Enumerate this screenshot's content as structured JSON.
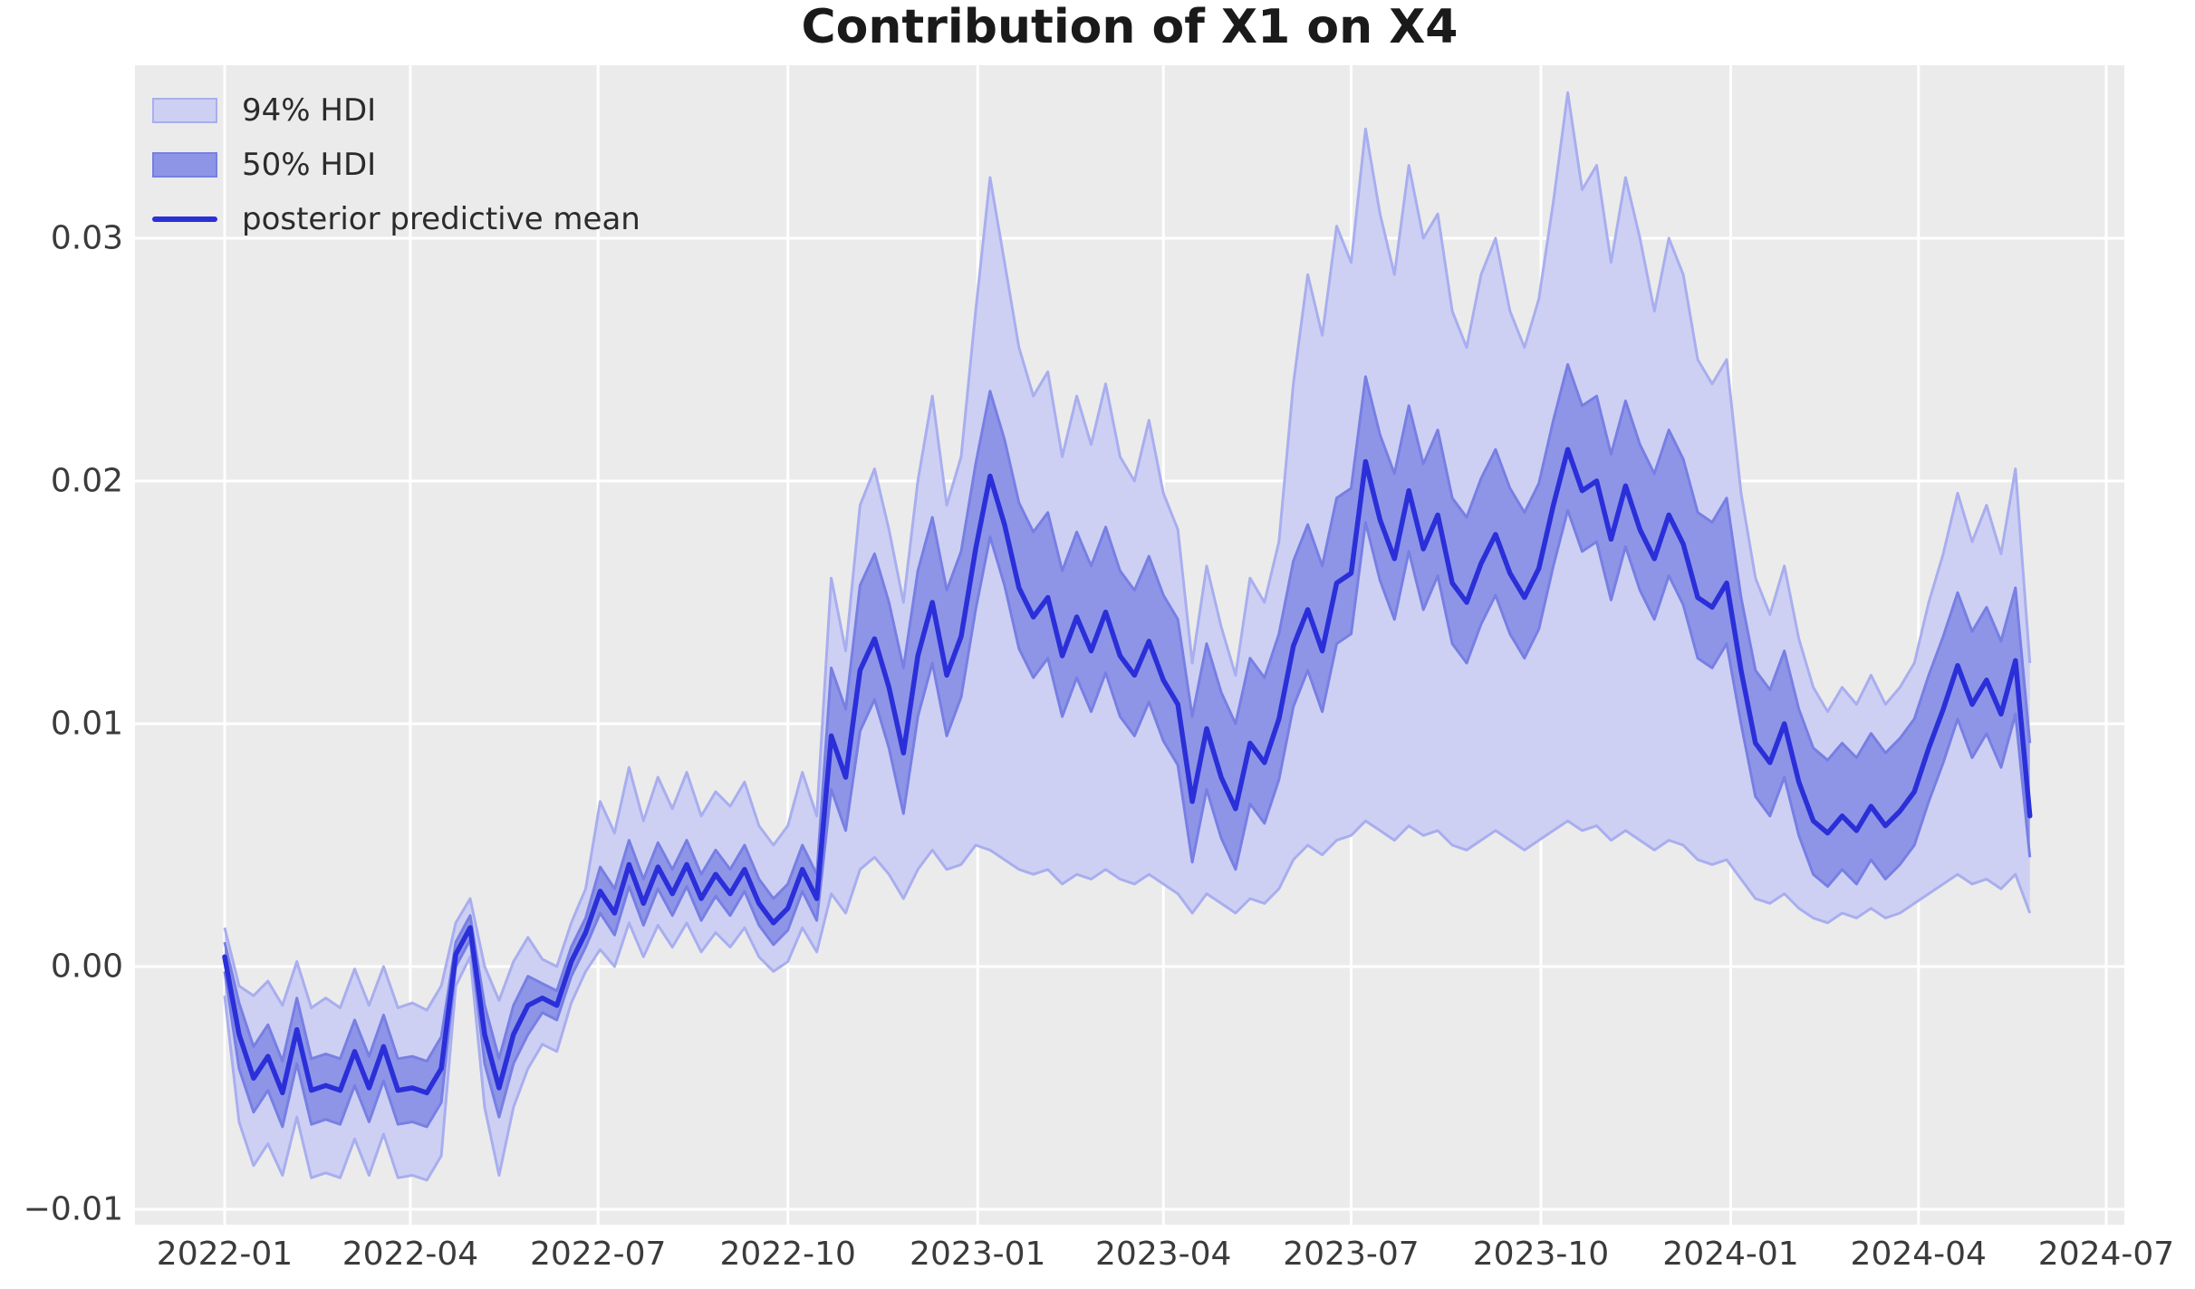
{
  "title": "Contribution of X1 on X4",
  "colors": {
    "figure_bg": "#ffffff",
    "axes_bg": "#ebebeb",
    "grid": "#ffffff",
    "hdi94_fill": "#cdd0f3",
    "hdi94_edge": "#a8aeee",
    "hdi50_fill": "#8e95e7",
    "hdi50_edge": "#777fe3",
    "mean_line": "#2b2fd8"
  },
  "legend": {
    "items": [
      {
        "label": "94% HDI",
        "type": "patch",
        "fill": "#cdd0f3",
        "edge": "#a8aeee"
      },
      {
        "label": "50% HDI",
        "type": "patch",
        "fill": "#8e95e7",
        "edge": "#777fe3"
      },
      {
        "label": "posterior predictive mean",
        "type": "line",
        "color": "#2b2fd8"
      }
    ]
  },
  "axes": {
    "y_ticks": [
      {
        "label": "0.03",
        "value": 0.03
      },
      {
        "label": "0.02",
        "value": 0.02
      },
      {
        "label": "0.01",
        "value": 0.01
      },
      {
        "label": "0.00",
        "value": 0.0
      },
      {
        "label": "−0.01",
        "value": -0.01
      }
    ],
    "x_ticks": [
      {
        "label": "2022-01",
        "day": 0
      },
      {
        "label": "2022-04",
        "day": 90
      },
      {
        "label": "2022-07",
        "day": 181
      },
      {
        "label": "2022-10",
        "day": 273
      },
      {
        "label": "2023-01",
        "day": 365
      },
      {
        "label": "2023-04",
        "day": 455
      },
      {
        "label": "2023-07",
        "day": 546
      },
      {
        "label": "2023-10",
        "day": 638
      },
      {
        "label": "2024-01",
        "day": 730
      },
      {
        "label": "2024-04",
        "day": 821
      },
      {
        "label": "2024-07",
        "day": 912
      }
    ]
  },
  "chart_data": {
    "type": "line",
    "title": "Contribution of X1 on X4",
    "xlabel": "",
    "ylabel": "",
    "grid": true,
    "legend_position": "upper left",
    "x_start_date": "2022-01-01",
    "x_step_days": 7,
    "n_points": 126,
    "ylim": [
      -0.0106,
      0.0371
    ],
    "series": {
      "mean": [
        0.0004,
        -0.0028,
        -0.0046,
        -0.0037,
        -0.0052,
        -0.0026,
        -0.0051,
        -0.0049,
        -0.0051,
        -0.0035,
        -0.005,
        -0.0033,
        -0.0051,
        -0.005,
        -0.0052,
        -0.0042,
        0.0005,
        0.0016,
        -0.0028,
        -0.005,
        -0.0028,
        -0.0016,
        -0.0013,
        -0.0016,
        0.0002,
        0.0014,
        0.0031,
        0.0022,
        0.0042,
        0.0026,
        0.0041,
        0.003,
        0.0042,
        0.0028,
        0.0038,
        0.003,
        0.004,
        0.0026,
        0.0018,
        0.0024,
        0.004,
        0.0028,
        0.0095,
        0.0078,
        0.0122,
        0.0135,
        0.0115,
        0.0088,
        0.0128,
        0.015,
        0.012,
        0.0136,
        0.0172,
        0.0202,
        0.0182,
        0.0156,
        0.0144,
        0.0152,
        0.0128,
        0.0144,
        0.013,
        0.0146,
        0.0128,
        0.012,
        0.0134,
        0.0118,
        0.0108,
        0.0068,
        0.0098,
        0.0078,
        0.0065,
        0.0092,
        0.0084,
        0.0102,
        0.0132,
        0.0147,
        0.013,
        0.0158,
        0.0162,
        0.0208,
        0.0184,
        0.0168,
        0.0196,
        0.0172,
        0.0186,
        0.0158,
        0.015,
        0.0166,
        0.0178,
        0.0162,
        0.0152,
        0.0164,
        0.019,
        0.0213,
        0.0196,
        0.02,
        0.0176,
        0.0198,
        0.018,
        0.0168,
        0.0186,
        0.0174,
        0.0152,
        0.0148,
        0.0158,
        0.0122,
        0.0092,
        0.0084,
        0.01,
        0.0076,
        0.006,
        0.0055,
        0.0062,
        0.0056,
        0.0066,
        0.0058,
        0.0064,
        0.0072,
        0.009,
        0.0106,
        0.0124,
        0.0108,
        0.0118,
        0.0104,
        0.0126,
        0.0062
      ],
      "hdi50_lower": [
        -0.0002,
        -0.0042,
        -0.006,
        -0.0051,
        -0.0066,
        -0.004,
        -0.0065,
        -0.0063,
        -0.0065,
        -0.0049,
        -0.0064,
        -0.0047,
        -0.0065,
        -0.0064,
        -0.0066,
        -0.0056,
        0.0,
        0.0011,
        -0.004,
        -0.0062,
        -0.004,
        -0.0028,
        -0.0019,
        -0.0022,
        -0.0004,
        0.0008,
        0.0022,
        0.0013,
        0.0033,
        0.0017,
        0.0032,
        0.0021,
        0.0033,
        0.0019,
        0.0029,
        0.0021,
        0.0031,
        0.0017,
        0.0009,
        0.0015,
        0.0031,
        0.0019,
        0.0073,
        0.0056,
        0.0097,
        0.011,
        0.009,
        0.0063,
        0.0103,
        0.0125,
        0.0095,
        0.0111,
        0.0147,
        0.0177,
        0.0157,
        0.0131,
        0.0119,
        0.0127,
        0.0103,
        0.0119,
        0.0105,
        0.0121,
        0.0103,
        0.0095,
        0.0109,
        0.0093,
        0.0083,
        0.0043,
        0.0073,
        0.0053,
        0.004,
        0.0067,
        0.0059,
        0.0077,
        0.0107,
        0.0122,
        0.0105,
        0.0133,
        0.0137,
        0.0183,
        0.0159,
        0.0143,
        0.0171,
        0.0147,
        0.0161,
        0.0133,
        0.0125,
        0.0141,
        0.0153,
        0.0137,
        0.0127,
        0.0139,
        0.0165,
        0.0188,
        0.0171,
        0.0175,
        0.0151,
        0.0173,
        0.0155,
        0.0143,
        0.0161,
        0.0149,
        0.0127,
        0.0123,
        0.0133,
        0.01,
        0.007,
        0.0062,
        0.0078,
        0.0054,
        0.0038,
        0.0033,
        0.004,
        0.0034,
        0.0044,
        0.0036,
        0.0042,
        0.005,
        0.0068,
        0.0084,
        0.0102,
        0.0086,
        0.0096,
        0.0082,
        0.0104,
        0.0045
      ],
      "hdi50_upper": [
        0.001,
        -0.0015,
        -0.0033,
        -0.0024,
        -0.0039,
        -0.0013,
        -0.0038,
        -0.0036,
        -0.0038,
        -0.0022,
        -0.0037,
        -0.002,
        -0.0038,
        -0.0037,
        -0.0039,
        -0.0029,
        0.001,
        0.0021,
        -0.0016,
        -0.0038,
        -0.0016,
        -0.0004,
        -0.0007,
        -0.001,
        0.0008,
        0.002,
        0.0041,
        0.0032,
        0.0052,
        0.0036,
        0.0051,
        0.004,
        0.0052,
        0.0038,
        0.0048,
        0.004,
        0.005,
        0.0036,
        0.0028,
        0.0034,
        0.005,
        0.0038,
        0.0123,
        0.0106,
        0.0157,
        0.017,
        0.015,
        0.0123,
        0.0163,
        0.0185,
        0.0155,
        0.0171,
        0.0207,
        0.0237,
        0.0217,
        0.0191,
        0.0179,
        0.0187,
        0.0163,
        0.0179,
        0.0165,
        0.0181,
        0.0163,
        0.0155,
        0.0169,
        0.0153,
        0.0143,
        0.0103,
        0.0133,
        0.0113,
        0.01,
        0.0127,
        0.0119,
        0.0137,
        0.0167,
        0.0182,
        0.0165,
        0.0193,
        0.0197,
        0.0243,
        0.0219,
        0.0203,
        0.0231,
        0.0207,
        0.0221,
        0.0193,
        0.0185,
        0.0201,
        0.0213,
        0.0197,
        0.0187,
        0.0199,
        0.0225,
        0.0248,
        0.0231,
        0.0235,
        0.0211,
        0.0233,
        0.0215,
        0.0203,
        0.0221,
        0.0209,
        0.0187,
        0.0183,
        0.0193,
        0.0152,
        0.0122,
        0.0114,
        0.013,
        0.0106,
        0.009,
        0.0085,
        0.0092,
        0.0086,
        0.0096,
        0.0088,
        0.0094,
        0.0102,
        0.012,
        0.0136,
        0.0154,
        0.0138,
        0.0148,
        0.0134,
        0.0156,
        0.0092
      ],
      "hdi94_lower": [
        -0.0012,
        -0.0064,
        -0.0082,
        -0.0073,
        -0.0086,
        -0.0062,
        -0.0087,
        -0.0085,
        -0.0087,
        -0.0071,
        -0.0086,
        -0.0069,
        -0.0087,
        -0.0086,
        -0.0088,
        -0.0078,
        -0.0008,
        0.0004,
        -0.0058,
        -0.0086,
        -0.0058,
        -0.0042,
        -0.0032,
        -0.0035,
        -0.0015,
        -0.0002,
        0.0007,
        0.0,
        0.0018,
        0.0004,
        0.0017,
        0.0008,
        0.0018,
        0.0006,
        0.0014,
        0.0008,
        0.0016,
        0.0004,
        -0.0002,
        0.0002,
        0.0016,
        0.0006,
        0.003,
        0.0022,
        0.004,
        0.0045,
        0.0038,
        0.0028,
        0.004,
        0.0048,
        0.004,
        0.0042,
        0.005,
        0.0048,
        0.0044,
        0.004,
        0.0038,
        0.004,
        0.0034,
        0.0038,
        0.0036,
        0.004,
        0.0036,
        0.0034,
        0.0038,
        0.0034,
        0.003,
        0.0022,
        0.003,
        0.0026,
        0.0022,
        0.0028,
        0.0026,
        0.0032,
        0.0044,
        0.005,
        0.0046,
        0.0052,
        0.0054,
        0.006,
        0.0056,
        0.0052,
        0.0058,
        0.0054,
        0.0056,
        0.005,
        0.0048,
        0.0052,
        0.0056,
        0.0052,
        0.0048,
        0.0052,
        0.0056,
        0.006,
        0.0056,
        0.0058,
        0.0052,
        0.0056,
        0.0052,
        0.0048,
        0.0052,
        0.005,
        0.0044,
        0.0042,
        0.0044,
        0.0036,
        0.0028,
        0.0026,
        0.003,
        0.0024,
        0.002,
        0.0018,
        0.0022,
        0.002,
        0.0024,
        0.002,
        0.0022,
        0.0026,
        0.003,
        0.0034,
        0.0038,
        0.0034,
        0.0036,
        0.0032,
        0.0038,
        0.0022
      ],
      "hdi94_upper": [
        0.0016,
        -0.0008,
        -0.0012,
        -0.0006,
        -0.0016,
        0.0002,
        -0.0017,
        -0.0013,
        -0.0017,
        -0.0001,
        -0.0016,
        0.0,
        -0.0017,
        -0.0015,
        -0.0018,
        -0.0008,
        0.0018,
        0.0028,
        0.0,
        -0.0014,
        0.0002,
        0.0012,
        0.0003,
        0.0,
        0.0018,
        0.0032,
        0.0068,
        0.0055,
        0.0082,
        0.006,
        0.0078,
        0.0065,
        0.008,
        0.0062,
        0.0072,
        0.0066,
        0.0076,
        0.0058,
        0.005,
        0.0058,
        0.008,
        0.0062,
        0.016,
        0.013,
        0.019,
        0.0205,
        0.018,
        0.015,
        0.02,
        0.0235,
        0.019,
        0.021,
        0.027,
        0.0325,
        0.029,
        0.0255,
        0.0235,
        0.0245,
        0.021,
        0.0235,
        0.0215,
        0.024,
        0.021,
        0.02,
        0.0225,
        0.0195,
        0.018,
        0.0125,
        0.0165,
        0.014,
        0.012,
        0.016,
        0.015,
        0.0175,
        0.024,
        0.0285,
        0.026,
        0.0305,
        0.029,
        0.0345,
        0.031,
        0.0285,
        0.033,
        0.03,
        0.031,
        0.027,
        0.0255,
        0.0285,
        0.03,
        0.027,
        0.0255,
        0.0275,
        0.0315,
        0.036,
        0.032,
        0.033,
        0.029,
        0.0325,
        0.03,
        0.027,
        0.03,
        0.0285,
        0.025,
        0.024,
        0.025,
        0.0195,
        0.016,
        0.0145,
        0.0165,
        0.0135,
        0.0115,
        0.0105,
        0.0115,
        0.0108,
        0.012,
        0.0108,
        0.0115,
        0.0125,
        0.015,
        0.017,
        0.0195,
        0.0175,
        0.019,
        0.017,
        0.0205,
        0.0125
      ]
    }
  }
}
